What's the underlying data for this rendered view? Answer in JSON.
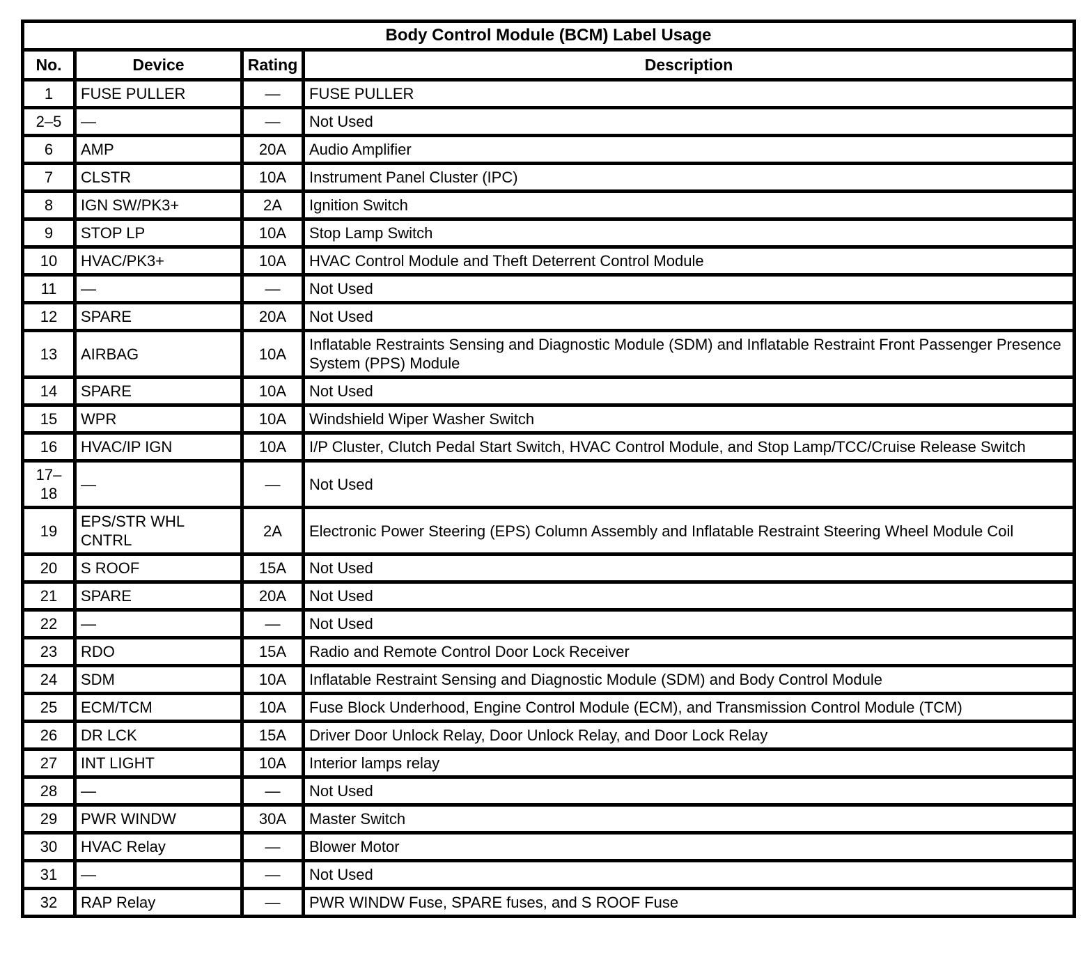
{
  "title": "Body Control Module (BCM) Label Usage",
  "columns": [
    "No.",
    "Device",
    "Rating",
    "Description"
  ],
  "rows": [
    {
      "no": "1",
      "device": "FUSE PULLER",
      "rating": "—",
      "description": "FUSE PULLER"
    },
    {
      "no": "2–5",
      "device": "—",
      "rating": "—",
      "description": "Not Used"
    },
    {
      "no": "6",
      "device": "AMP",
      "rating": "20A",
      "description": "Audio Amplifier"
    },
    {
      "no": "7",
      "device": "CLSTR",
      "rating": "10A",
      "description": "Instrument Panel Cluster (IPC)"
    },
    {
      "no": "8",
      "device": "IGN SW/PK3+",
      "rating": "2A",
      "description": "Ignition Switch"
    },
    {
      "no": "9",
      "device": "STOP LP",
      "rating": "10A",
      "description": "Stop Lamp Switch"
    },
    {
      "no": "10",
      "device": "HVAC/PK3+",
      "rating": "10A",
      "description": "HVAC Control Module and Theft Deterrent Control Module"
    },
    {
      "no": "11",
      "device": "—",
      "rating": "—",
      "description": "Not Used"
    },
    {
      "no": "12",
      "device": "SPARE",
      "rating": "20A",
      "description": "Not Used"
    },
    {
      "no": "13",
      "device": "AIRBAG",
      "rating": "10A",
      "description": "Inflatable Restraints Sensing and Diagnostic Module (SDM) and Inflatable Restraint Front Passenger Presence System (PPS) Module"
    },
    {
      "no": "14",
      "device": "SPARE",
      "rating": "10A",
      "description": "Not Used"
    },
    {
      "no": "15",
      "device": "WPR",
      "rating": "10A",
      "description": "Windshield Wiper Washer Switch"
    },
    {
      "no": "16",
      "device": "HVAC/IP IGN",
      "rating": "10A",
      "description": "I/P Cluster, Clutch Pedal Start Switch, HVAC Control Module, and Stop Lamp/TCC/Cruise Release Switch"
    },
    {
      "no": "17–18",
      "device": "—",
      "rating": "—",
      "description": "Not Used"
    },
    {
      "no": "19",
      "device": "EPS/STR WHL CNTRL",
      "rating": "2A",
      "description": "Electronic Power Steering (EPS) Column Assembly and Inflatable Restraint Steering Wheel Module Coil"
    },
    {
      "no": "20",
      "device": "S ROOF",
      "rating": "15A",
      "description": "Not Used"
    },
    {
      "no": "21",
      "device": "SPARE",
      "rating": "20A",
      "description": "Not Used"
    },
    {
      "no": "22",
      "device": "—",
      "rating": "—",
      "description": "Not Used"
    },
    {
      "no": "23",
      "device": "RDO",
      "rating": "15A",
      "description": "Radio and Remote Control Door Lock Receiver"
    },
    {
      "no": "24",
      "device": "SDM",
      "rating": "10A",
      "description": "Inflatable Restraint Sensing and Diagnostic Module (SDM) and Body Control Module"
    },
    {
      "no": "25",
      "device": "ECM/TCM",
      "rating": "10A",
      "description": "Fuse Block Underhood, Engine Control Module (ECM), and Transmission Control Module (TCM)"
    },
    {
      "no": "26",
      "device": "DR LCK",
      "rating": "15A",
      "description": "Driver Door Unlock Relay, Door Unlock Relay, and Door Lock Relay"
    },
    {
      "no": "27",
      "device": "INT LIGHT",
      "rating": "10A",
      "description": "Interior lamps relay"
    },
    {
      "no": "28",
      "device": "—",
      "rating": "—",
      "description": "Not Used"
    },
    {
      "no": "29",
      "device": "PWR WINDW",
      "rating": "30A",
      "description": "Master Switch"
    },
    {
      "no": "30",
      "device": "HVAC Relay",
      "rating": "—",
      "description": "Blower Motor"
    },
    {
      "no": "31",
      "device": "—",
      "rating": "—",
      "description": "Not Used"
    },
    {
      "no": "32",
      "device": "RAP Relay",
      "rating": "—",
      "description": "PWR WINDW Fuse, SPARE fuses, and S ROOF Fuse"
    }
  ],
  "colors": {
    "border": "#000000",
    "text": "#000000",
    "background": "#ffffff"
  }
}
